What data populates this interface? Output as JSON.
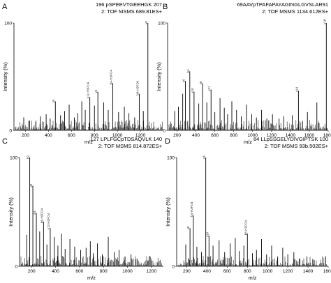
{
  "chart_data": [
    {
      "type": "bar",
      "panel": "A",
      "title_lines": [
        "196 pSPEEVTGEEHGK 207",
        "2: TOF MSMS 689.81ES+"
      ],
      "xlabel": "m/z",
      "ylabel": "Intensity (%)",
      "xlim": [
        100,
        1400
      ],
      "ylim": [
        0,
        100
      ],
      "xticks": [
        200,
        400,
        600,
        800,
        1000,
        1200
      ],
      "yticks": [
        0,
        100
      ],
      "peaks": [
        [
          185,
          12
        ],
        [
          230,
          9
        ],
        [
          290,
          8
        ],
        [
          330,
          13
        ],
        [
          380,
          15
        ],
        [
          415,
          11
        ],
        [
          460,
          27
        ],
        [
          505,
          14
        ],
        [
          540,
          18
        ],
        [
          580,
          24
        ],
        [
          625,
          12
        ],
        [
          655,
          16
        ],
        [
          690,
          27
        ],
        [
          720,
          19
        ],
        [
          760,
          31
        ],
        [
          800,
          23
        ],
        [
          830,
          36
        ],
        [
          880,
          26
        ],
        [
          920,
          19
        ],
        [
          960,
          44
        ],
        [
          1010,
          17
        ],
        [
          1060,
          22
        ],
        [
          1100,
          16
        ],
        [
          1150,
          12
        ],
        [
          1190,
          34
        ],
        [
          1225,
          18
        ],
        [
          1265,
          100
        ]
      ],
      "peak_labels": [
        "y8",
        "b4-H3PO4",
        "y6",
        "b8-H3PO4",
        "y12-H3PO4",
        "y5"
      ]
    },
    {
      "type": "bar",
      "panel": "B",
      "title_lines": [
        "69AAVpTPAFAPAYAGINGLGVSLAR91",
        "2: TOF MSMS 1134.612ES+"
      ],
      "xlabel": "m/z",
      "ylabel": "Intensity (%)",
      "xlim": [
        100,
        1800
      ],
      "ylim": [
        0,
        100
      ],
      "xticks": [
        200,
        400,
        600,
        800,
        1000,
        1200,
        1400,
        1600,
        1800
      ],
      "yticks": [
        0,
        100
      ],
      "peaks": [
        [
          175,
          18
        ],
        [
          215,
          22
        ],
        [
          260,
          34
        ],
        [
          288,
          46
        ],
        [
          335,
          55
        ],
        [
          380,
          36
        ],
        [
          430,
          25
        ],
        [
          470,
          44
        ],
        [
          515,
          26
        ],
        [
          560,
          38
        ],
        [
          600,
          17
        ],
        [
          655,
          30
        ],
        [
          700,
          21
        ],
        [
          735,
          15
        ],
        [
          780,
          27
        ],
        [
          830,
          19
        ],
        [
          880,
          13
        ],
        [
          935,
          24
        ],
        [
          990,
          15
        ],
        [
          1040,
          12
        ],
        [
          1095,
          19
        ],
        [
          1150,
          11
        ],
        [
          1210,
          15
        ],
        [
          1280,
          11
        ],
        [
          1330,
          13
        ],
        [
          1420,
          14
        ],
        [
          1485,
          37
        ],
        [
          1580,
          17
        ],
        [
          1680,
          26
        ],
        [
          1780,
          100
        ]
      ],
      "peak_labels": [
        "y18",
        "b4",
        "y6",
        "y8",
        "y11",
        "y14",
        "y16"
      ]
    },
    {
      "type": "bar",
      "panel": "C",
      "title_lines": [
        "127 LPLFGCpTDSAQVLK 140",
        "2: TOF MSMS 814.872ES+"
      ],
      "xlabel": "m/z",
      "ylabel": "Intensity (%)",
      "xlim": [
        100,
        1300
      ],
      "ylim": [
        0,
        100
      ],
      "xticks": [
        200,
        400,
        600,
        800,
        1000,
        1200
      ],
      "yticks": [
        0,
        100
      ],
      "peaks": [
        [
          160,
          29
        ],
        [
          185,
          100
        ],
        [
          211,
          74
        ],
        [
          240,
          49
        ],
        [
          268,
          32
        ],
        [
          300,
          41
        ],
        [
          328,
          20
        ],
        [
          356,
          35
        ],
        [
          390,
          27
        ],
        [
          420,
          19
        ],
        [
          450,
          30
        ],
        [
          480,
          16
        ],
        [
          520,
          25
        ],
        [
          560,
          18
        ],
        [
          610,
          15
        ],
        [
          655,
          17
        ],
        [
          690,
          23
        ],
        [
          715,
          12
        ],
        [
          750,
          21
        ],
        [
          790,
          11
        ],
        [
          840,
          27
        ],
        [
          890,
          13
        ],
        [
          930,
          15
        ],
        [
          980,
          9
        ],
        [
          1030,
          11
        ],
        [
          1080,
          7
        ]
      ],
      "peak_labels": [
        "b2",
        "y8",
        "b4",
        "b6-H3PO4",
        "y12-H3PO4"
      ]
    },
    {
      "type": "bar",
      "panel": "D",
      "title_lines": [
        "84 LLpSSGELYDIVGIPTSK 100",
        "2: TOF MSMS 93b.502ES+"
      ],
      "xlabel": "m/z",
      "ylabel": "Intensity (%)",
      "xlim": [
        100,
        1600
      ],
      "ylim": [
        0,
        100
      ],
      "xticks": [
        200,
        400,
        600,
        800,
        1000,
        1200,
        1400,
        1600
      ],
      "yticks": [
        0,
        100
      ],
      "peaks": [
        [
          190,
          20
        ],
        [
          232,
          35
        ],
        [
          265,
          47
        ],
        [
          300,
          18
        ],
        [
          345,
          13
        ],
        [
          388,
          100
        ],
        [
          420,
          28
        ],
        [
          460,
          19
        ],
        [
          520,
          24
        ],
        [
          575,
          13
        ],
        [
          630,
          21
        ],
        [
          680,
          26
        ],
        [
          720,
          14
        ],
        [
          765,
          19
        ],
        [
          800,
          30
        ],
        [
          850,
          12
        ],
        [
          890,
          15
        ],
        [
          940,
          25
        ],
        [
          990,
          11
        ],
        [
          1040,
          19
        ],
        [
          1100,
          9
        ],
        [
          1150,
          17
        ],
        [
          1200,
          11
        ],
        [
          1260,
          13
        ],
        [
          1320,
          7
        ],
        [
          1390,
          9
        ],
        [
          1450,
          6
        ]
      ],
      "peak_labels": [
        "y4",
        "b4-H3PO4",
        "y8",
        "b6-H3PO4",
        "y10"
      ]
    }
  ]
}
